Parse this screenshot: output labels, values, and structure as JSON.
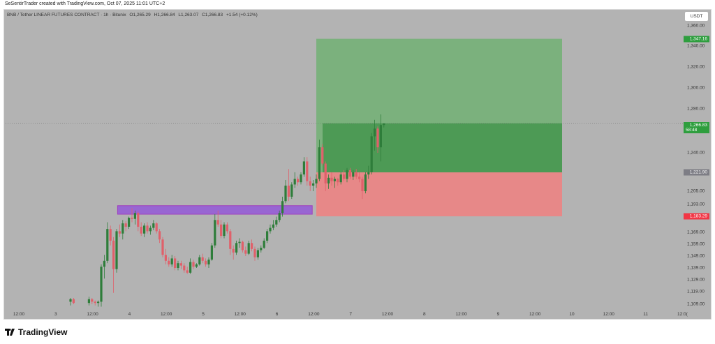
{
  "header": {
    "credit": "SeSentirTrader created with TradingView.com, Oct 07, 2025 11:01 UTC+2"
  },
  "legend": {
    "symbol": "BNB / Tether LINEAR FUTURES CONTRACT · 1h · Bitunix",
    "open": "O1,265.29",
    "high": "H1,266.84",
    "low": "L1,263.07",
    "close": "C1,266.83",
    "change": "+1.54 (+0.12%)"
  },
  "price_axis": {
    "currency": "USDT",
    "ticks": [
      "1,360.00",
      "1,340.00",
      "1,320.00",
      "1,300.00",
      "1,280.00",
      "1,240.00",
      "1,205.00",
      "1,193.00",
      "1,169.00",
      "1,159.00",
      "1,149.00",
      "1,139.00",
      "1,129.00",
      "1,119.00",
      "1,109.00"
    ],
    "tick_values": [
      1360,
      1340,
      1320,
      1300,
      1280,
      1240,
      1205,
      1193,
      1169,
      1159,
      1149,
      1139,
      1129,
      1119,
      1109
    ],
    "badges": [
      {
        "label": "1,347.16",
        "value": 1347.16,
        "color": "#2e9e3e"
      },
      {
        "label": "1,266.83",
        "sub": "58:48",
        "value": 1266.83,
        "color": "#2e9e3e"
      },
      {
        "label": "1,221.90",
        "value": 1221.9,
        "color": "#7d7d85"
      },
      {
        "label": "1,183.29",
        "value": 1183.29,
        "color": "#f23645"
      }
    ]
  },
  "time_axis": [
    "12:00",
    "3",
    "12:00",
    "4",
    "12:00",
    "5",
    "12:00",
    "6",
    "12:00",
    "7",
    "12:00",
    "8",
    "12:00",
    "9",
    "12:00",
    "10",
    "12:00",
    "11",
    "12:0("
  ],
  "colors": {
    "up": "#2e7d3a",
    "down": "#e0606a",
    "background": "#b3b3b3",
    "zone": "#9152d9",
    "target": "#4caf50",
    "stop": "#f08080"
  },
  "zone": {
    "from": "10-03 21:00",
    "to": "10-06 11:00",
    "top": 1192,
    "bottom": 1185
  },
  "position": {
    "from": "10-06 13:00",
    "to": "10-09 21:00",
    "entry": 1221.9,
    "target": 1347.16,
    "stop": 1183.29,
    "current": 1266.83
  },
  "logo": {
    "text": "TradingView"
  },
  "chart_data": {
    "type": "candlestick",
    "columns": [
      "time",
      "open",
      "high",
      "low",
      "close"
    ],
    "candles": [
      [
        "10-03 05:00",
        1111,
        1114,
        1108,
        1113
      ],
      [
        "10-03 06:00",
        1113,
        1114,
        1109,
        1110
      ],
      [
        "10-03 11:00",
        1110,
        1115,
        1108,
        1113
      ],
      [
        "10-03 12:00",
        1113,
        1114,
        1109,
        1111
      ],
      [
        "10-03 13:00",
        1111,
        1112,
        1108,
        1110
      ],
      [
        "10-03 14:00",
        1110,
        1112,
        1107,
        1111
      ],
      [
        "10-03 15:00",
        1111,
        1142,
        1107,
        1140
      ],
      [
        "10-03 16:00",
        1140,
        1150,
        1130,
        1145
      ],
      [
        "10-03 17:00",
        1145,
        1178,
        1143,
        1172
      ],
      [
        "10-03 18:00",
        1172,
        1175,
        1158,
        1162
      ],
      [
        "10-03 19:00",
        1162,
        1165,
        1118,
        1138
      ],
      [
        "10-03 20:00",
        1138,
        1172,
        1135,
        1170
      ],
      [
        "10-03 21:00",
        1170,
        1176,
        1165,
        1168
      ],
      [
        "10-03 22:00",
        1168,
        1180,
        1163,
        1177
      ],
      [
        "10-03 23:00",
        1177,
        1179,
        1170,
        1174
      ],
      [
        "10-04 00:00",
        1174,
        1183,
        1172,
        1182
      ],
      [
        "10-04 01:00",
        1182,
        1190,
        1178,
        1181
      ],
      [
        "10-04 02:00",
        1181,
        1188,
        1176,
        1186
      ],
      [
        "10-04 03:00",
        1186,
        1187,
        1170,
        1174
      ],
      [
        "10-04 04:00",
        1174,
        1178,
        1166,
        1168
      ],
      [
        "10-04 05:00",
        1168,
        1177,
        1165,
        1175
      ],
      [
        "10-04 06:00",
        1175,
        1178,
        1168,
        1170
      ],
      [
        "10-04 07:00",
        1170,
        1175,
        1167,
        1173
      ],
      [
        "10-04 08:00",
        1173,
        1180,
        1171,
        1177
      ],
      [
        "10-04 09:00",
        1177,
        1178,
        1168,
        1170
      ],
      [
        "10-04 10:00",
        1170,
        1172,
        1160,
        1163
      ],
      [
        "10-04 11:00",
        1163,
        1165,
        1148,
        1150
      ],
      [
        "10-04 12:00",
        1150,
        1155,
        1142,
        1145
      ],
      [
        "10-04 13:00",
        1145,
        1148,
        1140,
        1142
      ],
      [
        "10-04 14:00",
        1142,
        1150,
        1140,
        1147
      ],
      [
        "10-04 15:00",
        1147,
        1149,
        1137,
        1139
      ],
      [
        "10-04 16:00",
        1139,
        1145,
        1137,
        1143
      ],
      [
        "10-04 17:00",
        1143,
        1145,
        1138,
        1141
      ],
      [
        "10-04 18:00",
        1141,
        1143,
        1135,
        1137
      ],
      [
        "10-04 19:00",
        1137,
        1140,
        1134,
        1135
      ],
      [
        "10-04 20:00",
        1135,
        1147,
        1134,
        1144
      ],
      [
        "10-04 21:00",
        1144,
        1146,
        1138,
        1140
      ],
      [
        "10-04 22:00",
        1140,
        1143,
        1139,
        1142
      ],
      [
        "10-04 23:00",
        1142,
        1150,
        1141,
        1148
      ],
      [
        "10-05 00:00",
        1148,
        1151,
        1143,
        1145
      ],
      [
        "10-05 01:00",
        1145,
        1147,
        1140,
        1142
      ],
      [
        "10-05 02:00",
        1142,
        1148,
        1139,
        1146
      ],
      [
        "10-05 03:00",
        1146,
        1160,
        1145,
        1158
      ],
      [
        "10-05 04:00",
        1158,
        1185,
        1156,
        1180
      ],
      [
        "10-05 05:00",
        1180,
        1188,
        1174,
        1176
      ],
      [
        "10-05 06:00",
        1176,
        1180,
        1164,
        1166
      ],
      [
        "10-05 07:00",
        1166,
        1178,
        1164,
        1176
      ],
      [
        "10-05 08:00",
        1176,
        1178,
        1168,
        1170
      ],
      [
        "10-05 09:00",
        1170,
        1172,
        1150,
        1155
      ],
      [
        "10-05 10:00",
        1155,
        1158,
        1146,
        1152
      ],
      [
        "10-05 11:00",
        1152,
        1162,
        1150,
        1160
      ],
      [
        "10-05 12:00",
        1160,
        1164,
        1156,
        1161
      ],
      [
        "10-05 13:00",
        1161,
        1162,
        1152,
        1154
      ],
      [
        "10-05 14:00",
        1154,
        1157,
        1149,
        1151
      ],
      [
        "10-05 15:00",
        1151,
        1162,
        1150,
        1160
      ],
      [
        "10-05 16:00",
        1160,
        1163,
        1153,
        1155
      ],
      [
        "10-05 17:00",
        1155,
        1157,
        1145,
        1148
      ],
      [
        "10-05 18:00",
        1148,
        1156,
        1146,
        1154
      ],
      [
        "10-05 19:00",
        1154,
        1158,
        1152,
        1156
      ],
      [
        "10-05 20:00",
        1156,
        1164,
        1155,
        1162
      ],
      [
        "10-05 21:00",
        1162,
        1172,
        1160,
        1170
      ],
      [
        "10-05 22:00",
        1170,
        1176,
        1168,
        1173
      ],
      [
        "10-05 23:00",
        1173,
        1180,
        1171,
        1176
      ],
      [
        "10-06 00:00",
        1176,
        1183,
        1174,
        1180
      ],
      [
        "10-06 01:00",
        1180,
        1188,
        1178,
        1186
      ],
      [
        "10-06 02:00",
        1186,
        1200,
        1183,
        1196
      ],
      [
        "10-06 03:00",
        1196,
        1215,
        1194,
        1210
      ],
      [
        "10-06 04:00",
        1210,
        1225,
        1196,
        1200
      ],
      [
        "10-06 05:00",
        1200,
        1213,
        1198,
        1211
      ],
      [
        "10-06 06:00",
        1211,
        1222,
        1208,
        1216
      ],
      [
        "10-06 07:00",
        1216,
        1218,
        1210,
        1213
      ],
      [
        "10-06 08:00",
        1213,
        1222,
        1211,
        1220
      ],
      [
        "10-06 09:00",
        1220,
        1236,
        1218,
        1232
      ],
      [
        "10-06 10:00",
        1232,
        1236,
        1210,
        1214
      ],
      [
        "10-06 11:00",
        1214,
        1218,
        1205,
        1210
      ],
      [
        "10-06 12:00",
        1210,
        1215,
        1205,
        1212
      ],
      [
        "10-06 13:00",
        1212,
        1220,
        1208,
        1216
      ],
      [
        "10-06 14:00",
        1216,
        1252,
        1214,
        1245
      ],
      [
        "10-06 15:00",
        1245,
        1248,
        1228,
        1230
      ],
      [
        "10-06 16:00",
        1230,
        1232,
        1205,
        1212
      ],
      [
        "10-06 17:00",
        1212,
        1220,
        1207,
        1217
      ],
      [
        "10-06 18:00",
        1217,
        1222,
        1210,
        1214
      ],
      [
        "10-06 19:00",
        1214,
        1218,
        1208,
        1216
      ],
      [
        "10-06 20:00",
        1216,
        1217,
        1210,
        1213
      ],
      [
        "10-06 21:00",
        1213,
        1222,
        1211,
        1220
      ],
      [
        "10-06 22:00",
        1220,
        1224,
        1214,
        1216
      ],
      [
        "10-06 23:00",
        1216,
        1226,
        1213,
        1224
      ],
      [
        "10-07 00:00",
        1224,
        1226,
        1216,
        1218
      ],
      [
        "10-07 01:00",
        1218,
        1224,
        1215,
        1222
      ],
      [
        "10-07 02:00",
        1222,
        1225,
        1216,
        1218
      ],
      [
        "10-07 03:00",
        1218,
        1222,
        1213,
        1216
      ],
      [
        "10-07 04:00",
        1216,
        1218,
        1198,
        1205
      ],
      [
        "10-07 05:00",
        1205,
        1222,
        1203,
        1220
      ],
      [
        "10-07 06:00",
        1220,
        1228,
        1216,
        1222
      ],
      [
        "10-07 07:00",
        1222,
        1258,
        1220,
        1255
      ],
      [
        "10-07 08:00",
        1255,
        1270,
        1242,
        1262
      ],
      [
        "10-07 09:00",
        1262,
        1264,
        1240,
        1245
      ],
      [
        "10-07 10:00",
        1245,
        1275,
        1232,
        1265.29
      ],
      [
        "10-07 11:00",
        1265.29,
        1266.84,
        1263.07,
        1266.83
      ]
    ]
  }
}
